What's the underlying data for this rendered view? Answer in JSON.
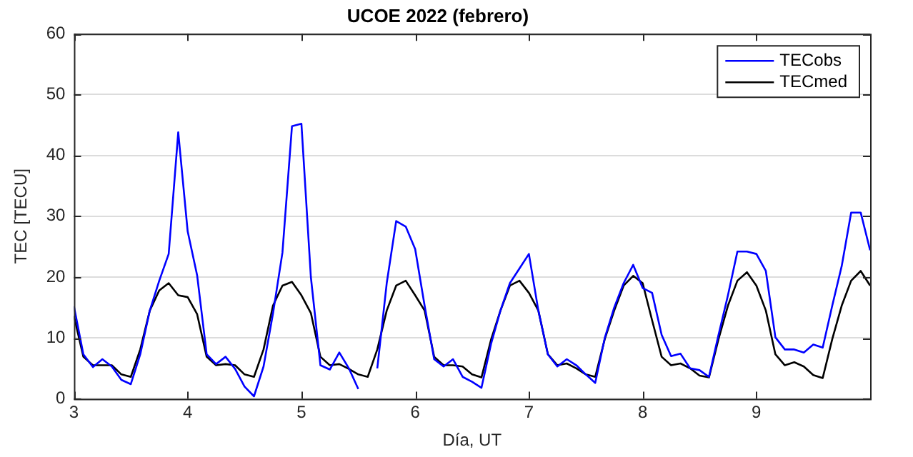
{
  "chart_data": {
    "type": "line",
    "title": "UCOE 2022 (febrero)",
    "xlabel": "Día, UT",
    "ylabel": "TEC [TECU]",
    "x": [
      3,
      3.083,
      3.167,
      3.25,
      3.333,
      3.417,
      3.5,
      3.583,
      3.667,
      3.75,
      3.833,
      3.917,
      4,
      4.083,
      4.167,
      4.25,
      4.333,
      4.417,
      4.5,
      4.583,
      4.667,
      4.75,
      4.833,
      4.917,
      5,
      5.083,
      5.167,
      5.25,
      5.333,
      5.417,
      5.5,
      5.583,
      5.667,
      5.75,
      5.833,
      5.917,
      6,
      6.083,
      6.167,
      6.25,
      6.333,
      6.417,
      6.5,
      6.583,
      6.667,
      6.75,
      6.833,
      6.917,
      7,
      7.083,
      7.167,
      7.25,
      7.333,
      7.417,
      7.5,
      7.583,
      7.667,
      7.75,
      7.833,
      7.917,
      8,
      8.083,
      8.167,
      8.25,
      8.333,
      8.417,
      8.5,
      8.583,
      8.667,
      8.75,
      8.833,
      8.917,
      9,
      9.083,
      9.167,
      9.25,
      9.333,
      9.417,
      9.5,
      9.583,
      9.667,
      9.75,
      9.833,
      9.917,
      10
    ],
    "series": [
      {
        "name": "TECobs",
        "color": "#0000ff",
        "values": [
          15.2,
          7.3,
          5.2,
          6.5,
          5.3,
          3.1,
          2.4,
          7.3,
          14.5,
          19.4,
          23.8,
          43.8,
          27.5,
          20.3,
          7.3,
          5.7,
          6.9,
          4.9,
          2.0,
          0.4,
          5.3,
          14,
          24,
          44.8,
          45.2,
          20,
          5.5,
          4.8,
          7.6,
          5,
          1.6,
          null,
          5,
          19,
          29.2,
          28.3,
          24.6,
          15.3,
          6.5,
          5.3,
          6.5,
          3.6,
          2.8,
          1.8,
          9,
          14.5,
          19,
          21.4,
          23.8,
          14.5,
          7.3,
          5.3,
          6.5,
          5.5,
          4,
          2.6,
          10,
          15,
          19,
          22,
          18.2,
          17.4,
          10.5,
          7,
          7.4,
          5,
          4.7,
          3.6,
          10.5,
          17,
          24.2,
          24.2,
          23.8,
          21,
          10.1,
          8.1,
          8.1,
          7.6,
          8.9,
          8.4,
          15.3,
          21.8,
          30.6,
          30.6,
          24.4
        ]
      },
      {
        "name": "TECmed",
        "color": "#000000",
        "values": [
          13.6,
          6.9,
          5.5,
          5.5,
          5.5,
          4,
          3.6,
          8.1,
          14.5,
          17.8,
          19,
          17,
          16.7,
          13.9,
          6.9,
          5.5,
          5.7,
          5.5,
          4,
          3.6,
          8.1,
          15.3,
          18.6,
          19.2,
          17,
          14.1,
          6.9,
          5.5,
          5.7,
          4.9,
          4,
          3.6,
          8.1,
          14.5,
          18.6,
          19.4,
          17,
          14.5,
          6.9,
          5.5,
          5.5,
          5.3,
          4,
          3.5,
          9.7,
          14.5,
          18.6,
          19.4,
          17.4,
          14.5,
          7.3,
          5.5,
          5.8,
          5,
          4,
          3.6,
          9.8,
          14.5,
          18.6,
          20.2,
          19,
          12.9,
          6.9,
          5.5,
          5.8,
          5,
          3.8,
          3.5,
          9.8,
          15.3,
          19.4,
          20.8,
          18.6,
          14.5,
          7.3,
          5.5,
          6,
          5.3,
          3.9,
          3.4,
          9.8,
          15.3,
          19.4,
          21,
          18.6
        ]
      }
    ],
    "xlim": [
      3,
      10
    ],
    "xticks": [
      3,
      4,
      5,
      6,
      7,
      8,
      9
    ],
    "ylim": [
      0,
      60
    ],
    "yticks": [
      0,
      10,
      20,
      30,
      40,
      50,
      60
    ],
    "grid": "y",
    "legend": "top right",
    "marker": "none",
    "line_style": "solid"
  }
}
